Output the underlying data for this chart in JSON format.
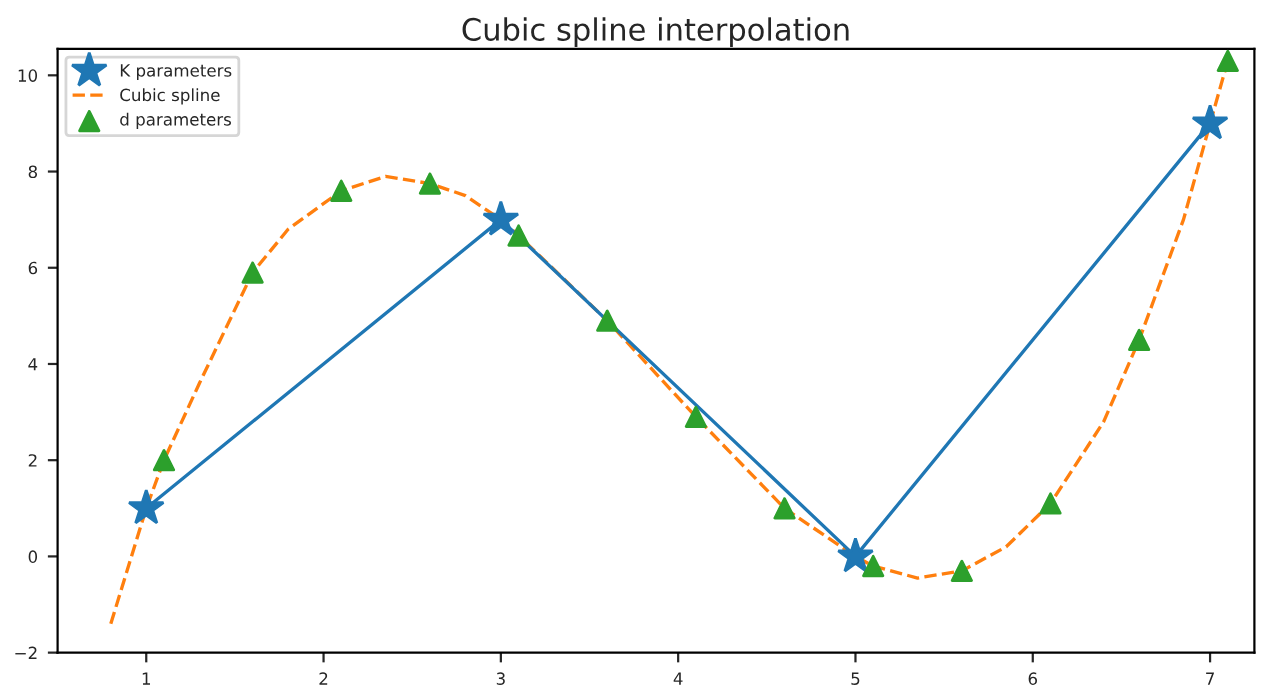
{
  "chart_data": {
    "type": "line",
    "title": "Cubic spline interpolation",
    "xlim": [
      0.5,
      7.25
    ],
    "ylim": [
      -2,
      10.55
    ],
    "xticks": [
      1,
      2,
      3,
      4,
      5,
      6,
      7
    ],
    "yticks": [
      {
        "value": -2,
        "label": "−2"
      },
      0,
      2,
      4,
      6,
      8,
      10
    ],
    "grid": false,
    "legend": "top left",
    "series": [
      {
        "name": "K parameters",
        "marker": "star",
        "line_style": "solid",
        "color": "#1f77b4",
        "x": [
          1,
          3,
          5,
          7
        ],
        "values": [
          1,
          7,
          0,
          9
        ]
      },
      {
        "name": "Cubic spline",
        "marker": "none",
        "line_style": "dashed",
        "color": "#ff7f0e",
        "x": [
          0.8,
          1,
          1.1,
          1.3,
          1.6,
          1.8,
          2.1,
          2.35,
          2.6,
          2.8,
          3,
          3.1,
          3.6,
          4.1,
          4.6,
          5,
          5.1,
          5.35,
          5.6,
          5.85,
          6.1,
          6.4,
          6.6,
          6.85,
          7,
          7.1
        ],
        "values": [
          -1.4,
          1,
          2.0,
          3.6,
          5.9,
          6.8,
          7.6,
          7.9,
          7.75,
          7.5,
          7,
          6.67,
          4.9,
          2.9,
          1.0,
          0,
          -0.2,
          -0.45,
          -0.3,
          0.2,
          1.1,
          2.8,
          4.5,
          7.0,
          9,
          10.3
        ]
      },
      {
        "name": "d parameters",
        "type": "scatter",
        "marker": "triangle",
        "color": "#2ca02c",
        "x": [
          1.1,
          1.6,
          2.1,
          2.6,
          3.1,
          3.6,
          4.1,
          4.6,
          5.1,
          5.6,
          6.1,
          6.6,
          7.1
        ],
        "values": [
          2.0,
          5.9,
          7.6,
          7.75,
          6.67,
          4.9,
          2.9,
          1.0,
          -0.2,
          -0.3,
          1.1,
          4.5,
          10.3
        ]
      }
    ]
  }
}
